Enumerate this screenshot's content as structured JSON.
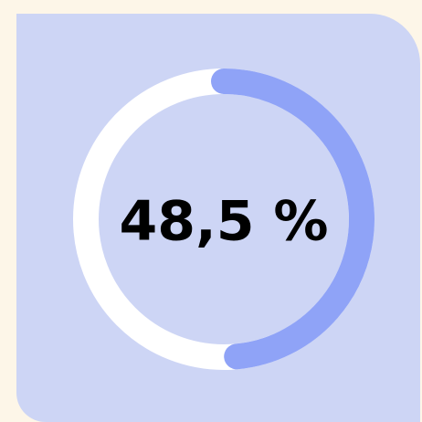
{
  "chart_data": {
    "type": "donut",
    "values": [
      48.5
    ],
    "value_labels": [
      "48,5 %"
    ],
    "ylim": [
      0,
      100
    ],
    "color": "#8fa3f7",
    "track_color": "#ffffff"
  }
}
